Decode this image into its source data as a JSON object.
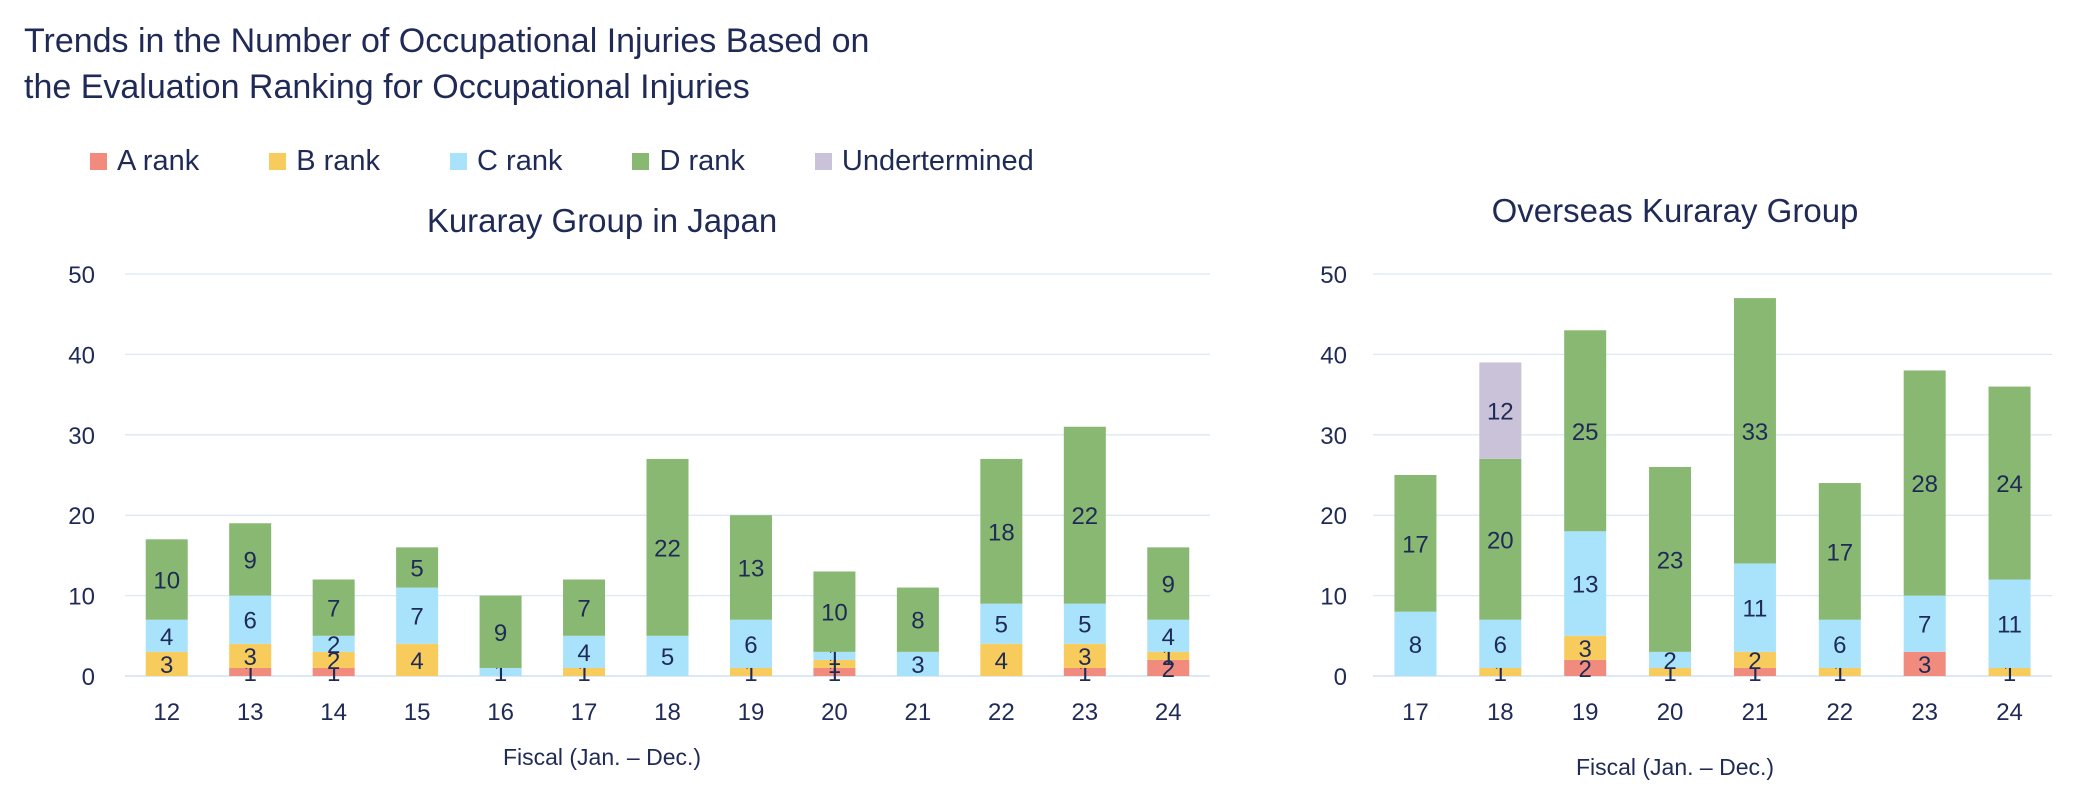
{
  "title_line1": "Trends in the Number of Occupational Injuries Based on",
  "title_line2": "the Evaluation Ranking for Occupational Injuries",
  "legend": [
    {
      "label": "A rank",
      "color": "#f08b7d"
    },
    {
      "label": "B rank",
      "color": "#f8cc5c"
    },
    {
      "label": "C rank",
      "color": "#a8e2fb"
    },
    {
      "label": "D rank",
      "color": "#88b872"
    },
    {
      "label": "Undertermined",
      "color": "#c9c2d8"
    }
  ],
  "chart_data": [
    {
      "type": "bar",
      "stacked": true,
      "title": "Kuraray Group in Japan",
      "xlabel": "Fiscal (Jan. – Dec.)",
      "ylabel": "",
      "ylim": [
        0,
        50
      ],
      "yticks": [
        0,
        10,
        20,
        30,
        40,
        50
      ],
      "grid": true,
      "categories": [
        "12",
        "13",
        "14",
        "15",
        "16",
        "17",
        "18",
        "19",
        "20",
        "21",
        "22",
        "23",
        "24"
      ],
      "series": [
        {
          "name": "A rank",
          "values": [
            0,
            1,
            1,
            0,
            0,
            0,
            0,
            0,
            1,
            0,
            0,
            1,
            2
          ]
        },
        {
          "name": "B rank",
          "values": [
            3,
            3,
            2,
            4,
            0,
            1,
            0,
            1,
            1,
            0,
            4,
            3,
            1
          ]
        },
        {
          "name": "C rank",
          "values": [
            4,
            6,
            2,
            7,
            1,
            4,
            5,
            6,
            1,
            3,
            5,
            5,
            4
          ]
        },
        {
          "name": "D rank",
          "values": [
            10,
            9,
            7,
            5,
            9,
            7,
            22,
            13,
            10,
            8,
            18,
            22,
            9
          ]
        },
        {
          "name": "Undertermined",
          "values": [
            0,
            0,
            0,
            0,
            0,
            0,
            0,
            0,
            0,
            0,
            0,
            0,
            0
          ]
        }
      ]
    },
    {
      "type": "bar",
      "stacked": true,
      "title": "Overseas Kuraray Group",
      "xlabel": "Fiscal (Jan. – Dec.)",
      "ylabel": "",
      "ylim": [
        0,
        50
      ],
      "yticks": [
        0,
        10,
        20,
        30,
        40,
        50
      ],
      "grid": true,
      "categories": [
        "17",
        "18",
        "19",
        "20",
        "21",
        "22",
        "23",
        "24"
      ],
      "series": [
        {
          "name": "A rank",
          "values": [
            0,
            0,
            2,
            0,
            1,
            0,
            3,
            0
          ]
        },
        {
          "name": "B rank",
          "values": [
            0,
            1,
            3,
            1,
            2,
            1,
            0,
            1
          ]
        },
        {
          "name": "C rank",
          "values": [
            8,
            6,
            13,
            2,
            11,
            6,
            7,
            11
          ]
        },
        {
          "name": "D rank",
          "values": [
            17,
            20,
            25,
            23,
            33,
            17,
            28,
            24
          ]
        },
        {
          "name": "Undertermined",
          "values": [
            0,
            12,
            0,
            0,
            0,
            0,
            0,
            0
          ]
        }
      ]
    }
  ]
}
